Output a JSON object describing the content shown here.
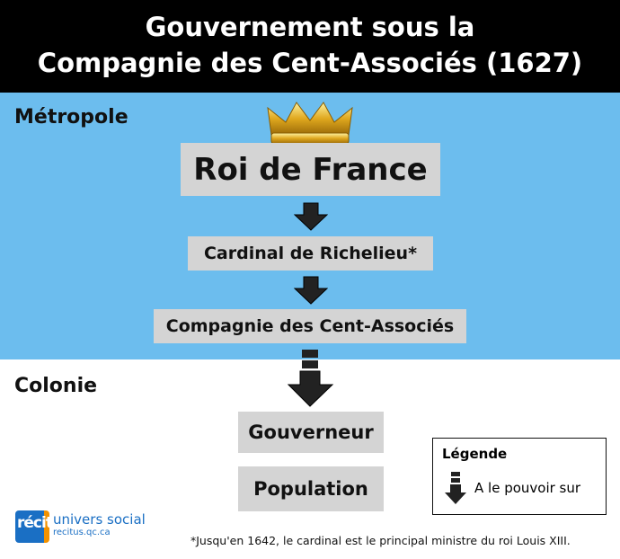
{
  "title": {
    "line1": "Gouvernement sous la",
    "line2": "Compagnie des Cent-Associés (1627)"
  },
  "regions": {
    "metropole": "Métropole",
    "colonie": "Colonie"
  },
  "boxes": {
    "roi": "Roi de France",
    "cardinal": "Cardinal de Richelieu*",
    "compagnie": "Compagnie des Cent-Associés",
    "gouverneur": "Gouverneur",
    "population": "Population"
  },
  "legend": {
    "title": "Légende",
    "arrow_label": "A le pouvoir sur"
  },
  "footnote": "*Jusqu'en 1642, le cardinal est le principal ministre du roi Louis XIII.",
  "logo": {
    "brand": "récit",
    "name": "univers social",
    "url": "recitus.qc.ca"
  },
  "colors": {
    "metropole_bg": "#6cbdee",
    "header_bg": "#000000",
    "box_bg": "#d4d4d4",
    "logo_blue": "#1a6fc4",
    "logo_orange": "#f39200"
  },
  "icons": [
    "crown-icon",
    "down-arrow-icon"
  ]
}
